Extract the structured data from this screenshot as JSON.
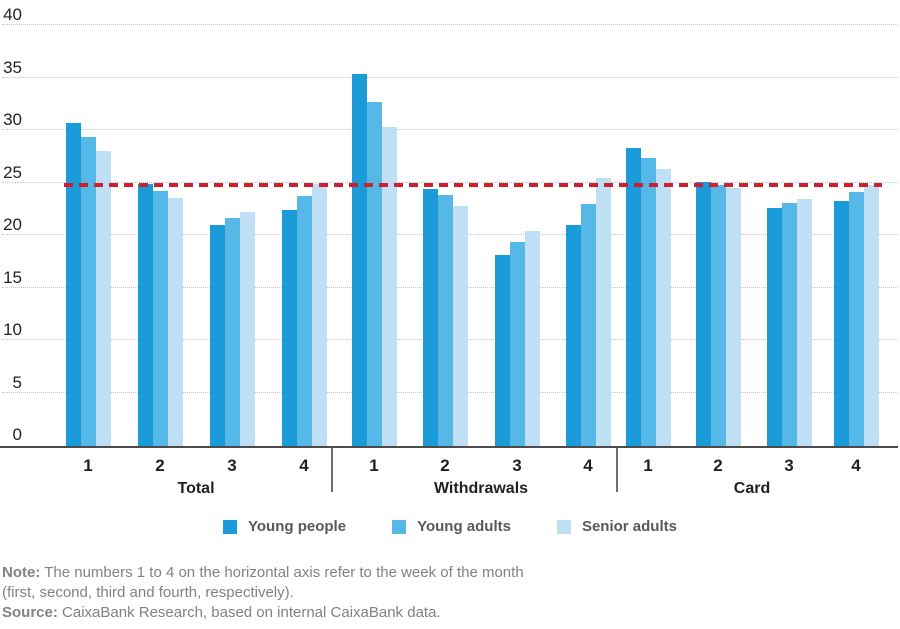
{
  "chart_data": {
    "type": "bar",
    "title": "",
    "xlabel": "",
    "ylabel": "",
    "ylim": [
      0,
      40
    ],
    "yticks": [
      0,
      5,
      10,
      15,
      20,
      25,
      30,
      35,
      40
    ],
    "grid": "horizontal-dotted",
    "legend_position": "bottom-center",
    "groups": [
      "Total",
      "Withdrawals",
      "Card"
    ],
    "week_labels": [
      "1",
      "2",
      "3",
      "4"
    ],
    "reference_line": {
      "value": 24.7,
      "style": "dashed",
      "color": "#ce1f2e"
    },
    "series": [
      {
        "name": "Young people",
        "color": "#1b9cd9",
        "values": [
          [
            30.6,
            24.8,
            20.9,
            22.3
          ],
          [
            35.2,
            24.3,
            18.0,
            20.9
          ],
          [
            28.2,
            25.0,
            22.5,
            23.1
          ]
        ]
      },
      {
        "name": "Young adults",
        "color": "#55b8e7",
        "values": [
          [
            29.2,
            24.1,
            21.5,
            23.6
          ],
          [
            32.6,
            23.7,
            19.2,
            22.9
          ],
          [
            27.2,
            24.7,
            23.0,
            24.0
          ]
        ]
      },
      {
        "name": "Senior adults",
        "color": "#bedff4",
        "values": [
          [
            27.9,
            23.4,
            22.1,
            24.8
          ],
          [
            30.2,
            22.7,
            20.3,
            25.3
          ],
          [
            26.2,
            24.4,
            23.3,
            24.7
          ]
        ]
      }
    ]
  },
  "notes": {
    "note_label": "Note:",
    "note_text": " The numbers 1 to 4 on the horizontal axis refer to the week of the month",
    "note_text2": "(first, second, third and fourth, respectively).",
    "source_label": "Source:",
    "source_text": " CaixaBank Research, based on internal CaixaBank data."
  }
}
